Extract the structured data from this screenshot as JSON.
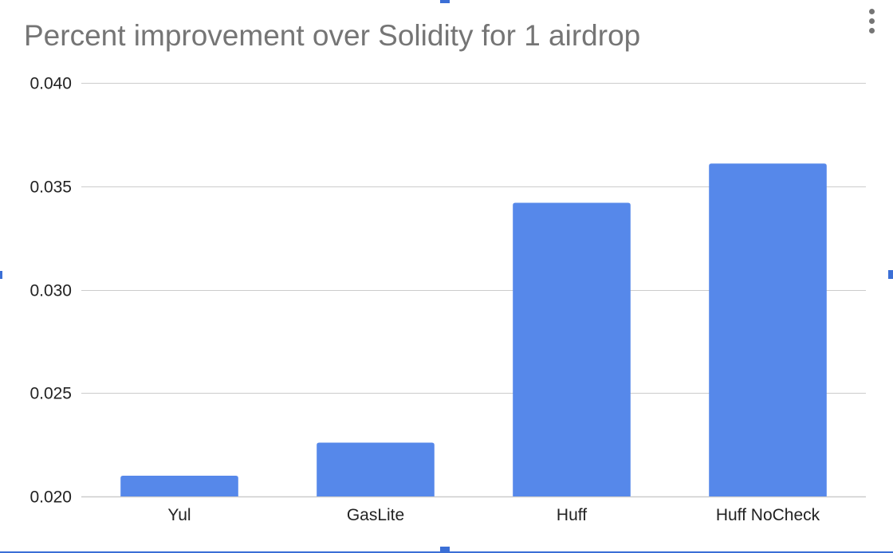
{
  "menu": {
    "icon": "more-vert-icon"
  },
  "colors": {
    "bar": "#5688ea",
    "grid": "#cccccc",
    "title": "#757575",
    "axis_text": "#222222",
    "selection": "#3b6fd6"
  },
  "chart_data": {
    "type": "bar",
    "title": "Percent improvement over Solidity for 1 airdrop",
    "xlabel": "",
    "ylabel": "",
    "categories": [
      "Yul",
      "GasLite",
      "Huff",
      "Huff NoCheck"
    ],
    "values": [
      0.021,
      0.0226,
      0.0342,
      0.0361
    ],
    "ylim": [
      0.02,
      0.04
    ],
    "yticks": [
      "0.020",
      "0.025",
      "0.030",
      "0.035",
      "0.040"
    ],
    "grid": true,
    "legend": "none"
  }
}
